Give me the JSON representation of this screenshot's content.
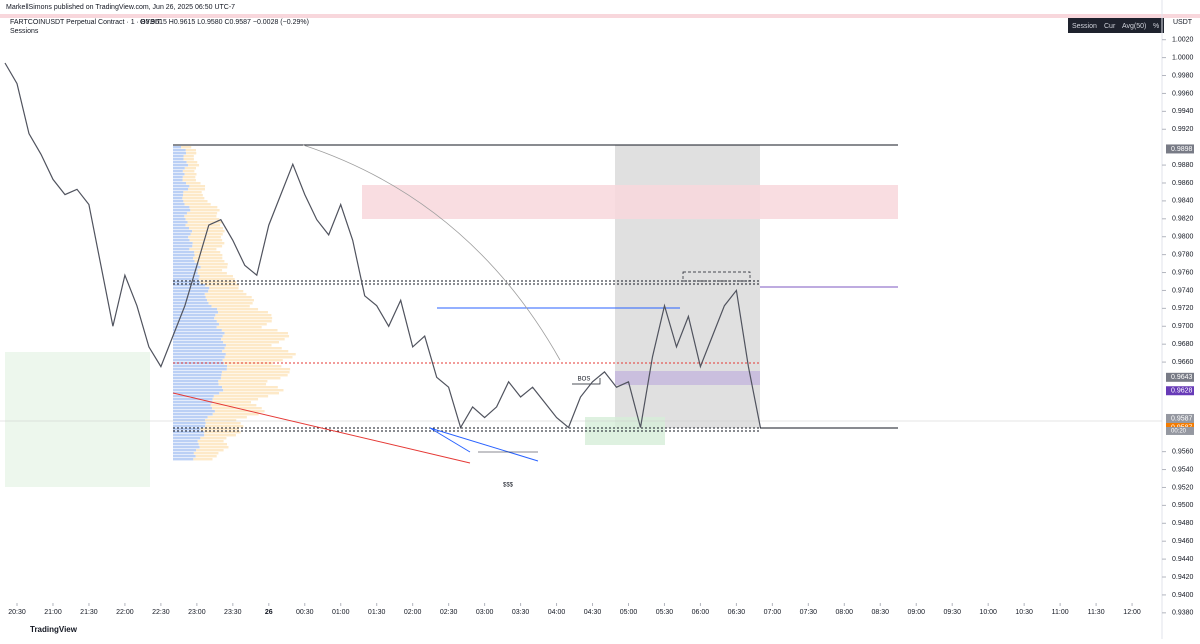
{
  "header": {
    "published": "MarkellSimons published on TradingView.com, Jun 26, 2025 06:50 UTC-7",
    "symbol": "FARTCOINUSDT Perpetual Contract · 1 · BYBIT",
    "ohlc": "O0.9615 H0.9615 L0.9580 C0.9587 −0.0028 (−0.29%)",
    "indicator": "Sessions",
    "session_box": [
      "Session",
      "Cur",
      "Avg(50)",
      "%"
    ]
  },
  "chart_data": {
    "type": "line",
    "color": "#50535e",
    "y_unit": "USDT",
    "x": [
      "20:20",
      "20:30",
      "20:40",
      "20:50",
      "21:00",
      "21:10",
      "21:20",
      "21:30",
      "21:40",
      "21:50",
      "22:00",
      "22:10",
      "22:20",
      "22:30",
      "22:40",
      "22:50",
      "23:00",
      "23:10",
      "23:20",
      "23:30",
      "23:40",
      "23:50",
      "00:00",
      "00:10",
      "00:20",
      "00:30",
      "00:40",
      "00:50",
      "01:00",
      "01:10",
      "01:20",
      "01:30",
      "01:40",
      "01:50",
      "02:00",
      "02:10",
      "02:20",
      "02:30",
      "02:40",
      "02:50",
      "03:00",
      "03:10",
      "03:20",
      "03:30",
      "03:40",
      "03:50",
      "04:00",
      "04:10",
      "04:20",
      "04:30",
      "04:40",
      "04:50",
      "05:00",
      "05:10",
      "05:20",
      "05:30",
      "05:40",
      "05:50",
      "06:00",
      "06:10",
      "06:20",
      "06:30",
      "06:40",
      "06:50"
    ],
    "values": [
      0.9994,
      0.9971,
      0.9915,
      0.9892,
      0.9864,
      0.9847,
      0.9853,
      0.9836,
      0.9768,
      0.97,
      0.9757,
      0.9723,
      0.9677,
      0.9655,
      0.9689,
      0.9723,
      0.9768,
      0.9813,
      0.9819,
      0.9796,
      0.9768,
      0.9757,
      0.9813,
      0.9847,
      0.9881,
      0.9847,
      0.9819,
      0.9802,
      0.9836,
      0.9796,
      0.9734,
      0.9723,
      0.97,
      0.9729,
      0.9677,
      0.9689,
      0.9643,
      0.9632,
      0.9587,
      0.961,
      0.9598,
      0.961,
      0.9638,
      0.9621,
      0.9632,
      0.9615,
      0.9598,
      0.9587,
      0.9621,
      0.9638,
      0.9649,
      0.9632,
      0.9638,
      0.9587,
      0.9666,
      0.9723,
      0.9677,
      0.9711,
      0.9655,
      0.9689,
      0.9723,
      0.974,
      0.9655,
      0.9587
    ],
    "ylim": [
      0.9372,
      1.0042
    ],
    "yticks": [
      {
        "value": 1.002,
        "label": "1.0020"
      },
      {
        "value": 1.0,
        "label": "1.0000"
      },
      {
        "value": 0.998,
        "label": "0.9980"
      },
      {
        "value": 0.996,
        "label": "0.9960"
      },
      {
        "value": 0.994,
        "label": "0.9940"
      },
      {
        "value": 0.992,
        "label": "0.9920"
      },
      {
        "value": 0.988,
        "label": "0.9880"
      },
      {
        "value": 0.986,
        "label": "0.9860"
      },
      {
        "value": 0.984,
        "label": "0.9840"
      },
      {
        "value": 0.982,
        "label": "0.9820"
      },
      {
        "value": 0.98,
        "label": "0.9800"
      },
      {
        "value": 0.978,
        "label": "0.9780"
      },
      {
        "value": 0.976,
        "label": "0.9760"
      },
      {
        "value": 0.974,
        "label": "0.9740"
      },
      {
        "value": 0.972,
        "label": "0.9720"
      },
      {
        "value": 0.97,
        "label": "0.9700"
      },
      {
        "value": 0.968,
        "label": "0.9680"
      },
      {
        "value": 0.966,
        "label": "0.9660"
      },
      {
        "value": 0.956,
        "label": "0.9560"
      },
      {
        "value": 0.954,
        "label": "0.9540"
      },
      {
        "value": 0.952,
        "label": "0.9520"
      },
      {
        "value": 0.95,
        "label": "0.9500"
      },
      {
        "value": 0.948,
        "label": "0.9480"
      },
      {
        "value": 0.946,
        "label": "0.9460"
      },
      {
        "value": 0.944,
        "label": "0.9440"
      },
      {
        "value": 0.942,
        "label": "0.9420"
      },
      {
        "value": 0.94,
        "label": "0.9400"
      },
      {
        "value": 0.938,
        "label": "0.9380"
      }
    ],
    "xticks": [
      "20:30",
      "21:00",
      "21:30",
      "22:00",
      "22:30",
      "23:00",
      "23:30",
      {
        "value": "00:00",
        "label": "26"
      },
      "00:30",
      "01:00",
      "01:30",
      "02:00",
      "02:30",
      "03:00",
      "03:30",
      "04:00",
      "04:30",
      "05:00",
      "05:30",
      "06:00",
      "06:30",
      "07:00",
      "07:30",
      "08:00",
      "08:30",
      "09:00",
      "09:30",
      "10:00",
      "10:30",
      "11:00",
      "11:30",
      "12:00"
    ],
    "price_labels": [
      {
        "value": 0.9898,
        "label": "0.9898",
        "color": "#787b86"
      },
      {
        "value": 0.9643,
        "label": "0.9643",
        "color": "#787b86"
      },
      {
        "value": 0.9628,
        "label": "0.9628",
        "color": "#673ab7"
      },
      {
        "value": 0.9587,
        "label": "0.9587",
        "color": "#9598a1"
      },
      {
        "value": 0.9587,
        "label": "0.9587",
        "color": "#f57c00"
      }
    ],
    "countdown": "00:20",
    "annotations": [
      "BOS",
      "$$$"
    ]
  },
  "footer": "TradingView"
}
